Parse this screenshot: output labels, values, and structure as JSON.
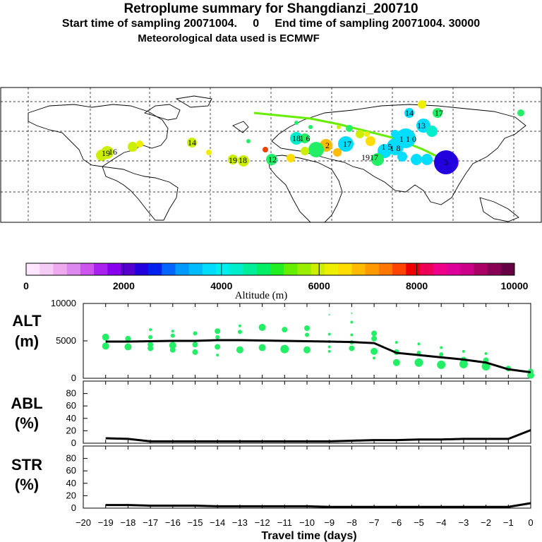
{
  "header": {
    "title": "Retroplume summary for Shangdianzi_200710",
    "sampling": "Start time of sampling 20071004.     0     End time of sampling 20071004. 30000",
    "met": "Meteorological data used is ECMWF"
  },
  "colors": {
    "plume": "#22ee66",
    "line": "#000000",
    "scale": [
      "#ffe6ff",
      "#f5ccf5",
      "#eeaaee",
      "#dd88ee",
      "#cc55ee",
      "#aa22ee",
      "#8800ee",
      "#5500cc",
      "#2200dd",
      "#0022ee",
      "#0066ff",
      "#0099ff",
      "#00bbff",
      "#00ddff",
      "#00eeee",
      "#00eecc",
      "#00ee99",
      "#00ee66",
      "#22ee22",
      "#66ee00",
      "#99ee00",
      "#ccee00",
      "#eeee00",
      "#ffdd00",
      "#ffbb00",
      "#ff9900",
      "#ff7700",
      "#ff4400",
      "#ee0000",
      "#ee0055",
      "#ee0088",
      "#dd0099",
      "#cc0088",
      "#aa0066",
      "#880055",
      "#660044"
    ]
  },
  "colorbar": {
    "ticks": [
      "0",
      "2000",
      "4000",
      "6000",
      "8000",
      "10000"
    ],
    "label": "Altitude  (m)"
  },
  "map": {
    "labels": [
      {
        "t": "14",
        "c": "#eeee00"
      },
      {
        "t": "17",
        "c": "#22ee66"
      },
      {
        "t": "13",
        "c": "#00ddff"
      },
      {
        "t": "1 1 0",
        "c": "#00ddff"
      },
      {
        "t": "17",
        "c": "#00ddff"
      },
      {
        "t": "1 5",
        "c": "#00ddff"
      },
      {
        "t": "1 8",
        "c": "#00ddff"
      },
      {
        "t": "1 6",
        "c": "#22ee66"
      },
      {
        "t": "2",
        "c": "#ffbb00"
      },
      {
        "t": "19",
        "c": "#ccee00"
      },
      {
        "t": "17",
        "c": "#ccee00"
      },
      {
        "t": "12",
        "c": "#22ee66"
      },
      {
        "t": "14",
        "c": "#ccee00"
      },
      {
        "t": "19",
        "c": "#ccee00"
      },
      {
        "t": "18",
        "c": "#ccee00"
      },
      {
        "t": "19",
        "c": "#ccee00"
      },
      {
        "t": "16",
        "c": "#ccee00"
      },
      {
        "t": "18",
        "c": "#22ee66"
      },
      {
        "t": "3",
        "c": "#aa22ee"
      }
    ]
  },
  "chart_data": [
    {
      "type": "scatter+line",
      "panel": "ALT",
      "ylabel": "ALT\n(m)",
      "xlabel": "Travel time (days)",
      "xlim": [
        -20,
        0
      ],
      "ylim": [
        0,
        10000
      ],
      "yticks": [
        "10000",
        "5000",
        "0"
      ],
      "x": [
        -19,
        -18,
        -17,
        -16,
        -15,
        -14,
        -13,
        -12,
        -11,
        -10,
        -9,
        -8,
        -7,
        -6,
        -5,
        -4,
        -3,
        -2,
        -1,
        0
      ],
      "line": [
        4900,
        4900,
        4950,
        5000,
        5000,
        5100,
        5100,
        5050,
        5000,
        4950,
        4900,
        4850,
        4700,
        3400,
        3100,
        2800,
        2500,
        2100,
        1200,
        800
      ],
      "points": [
        {
          "x": -19,
          "y": 5500,
          "s": 5
        },
        {
          "x": -19,
          "y": 4300,
          "s": 5
        },
        {
          "x": -18,
          "y": 5300,
          "s": 4
        },
        {
          "x": -18,
          "y": 4200,
          "s": 5
        },
        {
          "x": -17,
          "y": 6500,
          "s": 2
        },
        {
          "x": -17,
          "y": 5500,
          "s": 3
        },
        {
          "x": -17,
          "y": 4500,
          "s": 4
        },
        {
          "x": -17,
          "y": 4000,
          "s": 4
        },
        {
          "x": -16,
          "y": 6300,
          "s": 2
        },
        {
          "x": -16,
          "y": 5700,
          "s": 3
        },
        {
          "x": -16,
          "y": 4400,
          "s": 5
        },
        {
          "x": -16,
          "y": 3800,
          "s": 4
        },
        {
          "x": -15,
          "y": 6000,
          "s": 3
        },
        {
          "x": -15,
          "y": 4500,
          "s": 4
        },
        {
          "x": -15,
          "y": 3500,
          "s": 4
        },
        {
          "x": -14,
          "y": 6300,
          "s": 4
        },
        {
          "x": -14,
          "y": 5500,
          "s": 3
        },
        {
          "x": -14,
          "y": 4200,
          "s": 4
        },
        {
          "x": -14,
          "y": 3100,
          "s": 2
        },
        {
          "x": -13,
          "y": 7000,
          "s": 2
        },
        {
          "x": -13,
          "y": 6200,
          "s": 3
        },
        {
          "x": -13,
          "y": 3800,
          "s": 5
        },
        {
          "x": -12,
          "y": 6800,
          "s": 5
        },
        {
          "x": -12,
          "y": 4100,
          "s": 5
        },
        {
          "x": -11,
          "y": 6500,
          "s": 4
        },
        {
          "x": -11,
          "y": 3900,
          "s": 6
        },
        {
          "x": -10,
          "y": 6700,
          "s": 4
        },
        {
          "x": -10,
          "y": 5800,
          "s": 3
        },
        {
          "x": -10,
          "y": 3800,
          "s": 5
        },
        {
          "x": -9,
          "y": 8500,
          "s": 1
        },
        {
          "x": -9,
          "y": 5900,
          "s": 2
        },
        {
          "x": -9,
          "y": 4900,
          "s": 2
        },
        {
          "x": -9,
          "y": 4200,
          "s": 2
        },
        {
          "x": -9,
          "y": 3600,
          "s": 2
        },
        {
          "x": -8,
          "y": 8700,
          "s": 1
        },
        {
          "x": -8,
          "y": 7500,
          "s": 2
        },
        {
          "x": -8,
          "y": 5800,
          "s": 2
        },
        {
          "x": -8,
          "y": 4800,
          "s": 3
        },
        {
          "x": -8,
          "y": 4000,
          "s": 4
        },
        {
          "x": -7,
          "y": 6000,
          "s": 4
        },
        {
          "x": -7,
          "y": 5300,
          "s": 4
        },
        {
          "x": -7,
          "y": 3600,
          "s": 5
        },
        {
          "x": -7,
          "y": 2700,
          "s": 2
        },
        {
          "x": -6,
          "y": 4800,
          "s": 2
        },
        {
          "x": -6,
          "y": 3500,
          "s": 4
        },
        {
          "x": -6,
          "y": 2100,
          "s": 5
        },
        {
          "x": -5,
          "y": 4600,
          "s": 2
        },
        {
          "x": -5,
          "y": 3400,
          "s": 3
        },
        {
          "x": -5,
          "y": 2100,
          "s": 6
        },
        {
          "x": -4,
          "y": 4100,
          "s": 2
        },
        {
          "x": -4,
          "y": 3200,
          "s": 3
        },
        {
          "x": -4,
          "y": 1800,
          "s": 6
        },
        {
          "x": -3,
          "y": 3600,
          "s": 2
        },
        {
          "x": -3,
          "y": 2500,
          "s": 4
        },
        {
          "x": -3,
          "y": 1900,
          "s": 6
        },
        {
          "x": -2,
          "y": 3300,
          "s": 2
        },
        {
          "x": -2,
          "y": 2400,
          "s": 4
        },
        {
          "x": -2,
          "y": 1600,
          "s": 6
        },
        {
          "x": -1,
          "y": 1300,
          "s": 4
        },
        {
          "x": 0,
          "y": 900,
          "s": 4
        },
        {
          "x": 0,
          "y": 400,
          "s": 5
        }
      ]
    },
    {
      "type": "line",
      "panel": "ABL",
      "ylabel": "ABL\n(%)",
      "xlim": [
        -20,
        0
      ],
      "ylim": [
        0,
        100
      ],
      "yticks": [
        "80",
        "60",
        "40",
        "20",
        "0"
      ],
      "x": [
        -19,
        -18,
        -17,
        -16,
        -15,
        -14,
        -13,
        -12,
        -11,
        -10,
        -9,
        -8,
        -7,
        -6,
        -5,
        -4,
        -3,
        -2,
        -1,
        0
      ],
      "values": [
        8,
        7,
        3,
        3,
        3,
        3,
        3,
        3,
        3,
        3,
        3,
        4,
        5,
        5,
        6,
        6,
        7,
        7,
        7,
        21
      ]
    },
    {
      "type": "line",
      "panel": "STR",
      "ylabel": "STR\n(%)",
      "xlim": [
        -20,
        0
      ],
      "ylim": [
        0,
        100
      ],
      "yticks": [
        "80",
        "60",
        "40",
        "20",
        "0"
      ],
      "x": [
        -19,
        -18,
        -17,
        -16,
        -15,
        -14,
        -13,
        -12,
        -11,
        -10,
        -9,
        -8,
        -7,
        -6,
        -5,
        -4,
        -3,
        -2,
        -1,
        0
      ],
      "values": [
        5,
        5,
        4,
        4,
        4,
        3,
        3,
        3,
        3,
        3,
        2,
        2,
        2,
        2,
        2,
        2,
        2,
        2,
        2,
        8
      ],
      "xticks": [
        "−20",
        "−19",
        "−18",
        "−17",
        "−16",
        "−15",
        "−14",
        "−13",
        "−12",
        "−11",
        "−10",
        "−9",
        "−8",
        "−7",
        "−6",
        "−5",
        "−4",
        "−3",
        "−2",
        "−1",
        "0"
      ]
    }
  ]
}
